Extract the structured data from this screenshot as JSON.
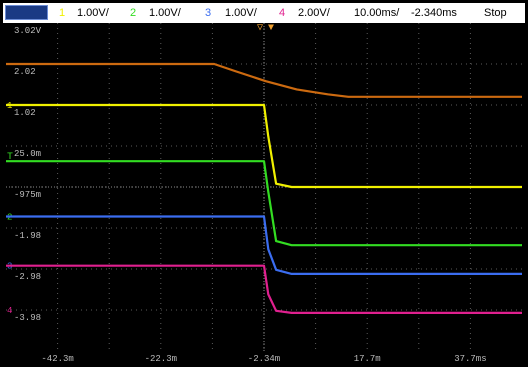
{
  "status_bar": {
    "channels": [
      {
        "number": "1",
        "scale": "1.00V/",
        "color": "#f0f000"
      },
      {
        "number": "2",
        "scale": "1.00V/",
        "color": "#33dd22"
      },
      {
        "number": "3",
        "scale": "1.00V/",
        "color": "#3b6df0"
      },
      {
        "number": "4",
        "scale": "2.00V/",
        "color": "#e0208f"
      }
    ],
    "timebase": "10.00ms/",
    "delay": "-2.340ms",
    "run_state": "Stop"
  },
  "chart_data": {
    "type": "line",
    "xlabel": "",
    "ylabel": "",
    "x_tick_labels": [
      "-42.3m",
      "-22.3m",
      "-2.34m",
      "17.7m",
      "37.7ms"
    ],
    "y_tick_labels": [
      "3.02V",
      "2.02",
      "1.02",
      "25.0m",
      "-975m",
      "-1.98",
      "-2.98",
      "-3.98"
    ],
    "trigger_marker": "▽",
    "x_units": "ms",
    "x_range": [
      -52.34,
      47.66
    ],
    "y_range": [
      -4.98,
      3.02
    ],
    "grid": true,
    "series": [
      {
        "channel": "1",
        "color": "#f0f000",
        "x": [
          -52.34,
          -2.6,
          -2.34,
          -1.5,
          0,
          3,
          47.66
        ],
        "y": [
          1.02,
          1.02,
          1.02,
          0.25,
          -0.9,
          -0.98,
          -0.98
        ]
      },
      {
        "channel": "2",
        "color": "#33dd22",
        "x": [
          -52.34,
          -2.6,
          -2.34,
          -1.5,
          0,
          3,
          47.66
        ],
        "y": [
          -0.35,
          -0.35,
          -0.35,
          -1.1,
          -2.3,
          -2.4,
          -2.4
        ]
      },
      {
        "channel": "3",
        "color": "#3b6df0",
        "x": [
          -52.34,
          -2.6,
          -2.34,
          -1.5,
          0,
          3,
          47.66
        ],
        "y": [
          -1.7,
          -1.7,
          -1.7,
          -2.5,
          -3.0,
          -3.1,
          -3.1
        ]
      },
      {
        "channel": "4",
        "color": "#e0208f",
        "x": [
          -52.34,
          -2.6,
          -2.34,
          -1.5,
          0,
          3,
          47.66
        ],
        "y": [
          -2.9,
          -2.9,
          -2.9,
          -3.6,
          -4.0,
          -4.05,
          -4.05
        ]
      },
      {
        "channel": "math",
        "color": "#cc6a10",
        "x": [
          -52.34,
          -12.0,
          -8.0,
          -2.0,
          4.0,
          10.0,
          14.0,
          47.66
        ],
        "y": [
          2.02,
          2.02,
          1.85,
          1.6,
          1.4,
          1.28,
          1.22,
          1.22
        ]
      }
    ],
    "trigger_level_marker": "T",
    "ground_markers": [
      {
        "channel": "1",
        "level": 1.02
      },
      {
        "channel": "2",
        "level": -1.7
      },
      {
        "channel": "3",
        "level": -2.9
      },
      {
        "channel": "4",
        "level": -3.98
      }
    ]
  }
}
